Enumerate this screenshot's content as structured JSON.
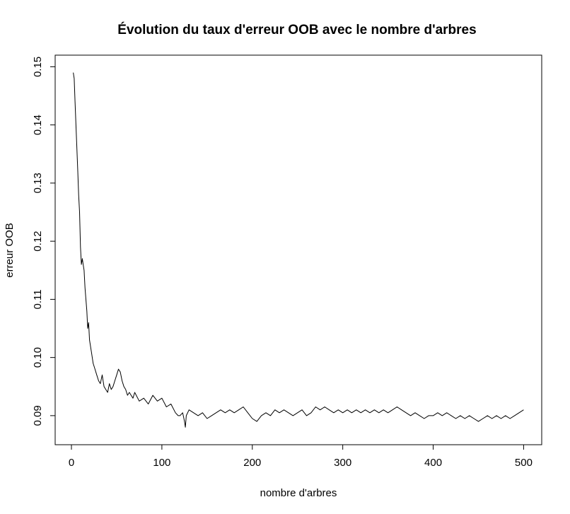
{
  "chart_data": {
    "type": "line",
    "title": "Évolution du taux d'erreur OOB avec le nombre d'arbres",
    "xlabel": "nombre d'arbres",
    "ylabel": "erreur OOB",
    "xlim": [
      -18,
      520
    ],
    "ylim": [
      0.085,
      0.152
    ],
    "xticks": [
      0,
      100,
      200,
      300,
      400,
      500
    ],
    "yticks": [
      0.09,
      0.1,
      0.11,
      0.12,
      0.13,
      0.14,
      0.15
    ],
    "xtick_labels": [
      "0",
      "100",
      "200",
      "300",
      "400",
      "500"
    ],
    "ytick_labels": [
      "0.09",
      "0.10",
      "0.11",
      "0.12",
      "0.13",
      "0.14",
      "0.15"
    ],
    "grid": false,
    "legend": "none",
    "series": [
      {
        "color": "#000000",
        "x": [
          2,
          3,
          4,
          5,
          6,
          7,
          8,
          9,
          10,
          11,
          12,
          13,
          14,
          15,
          16,
          17,
          18,
          19,
          20,
          22,
          24,
          26,
          28,
          30,
          32,
          34,
          36,
          38,
          40,
          42,
          44,
          46,
          48,
          50,
          52,
          54,
          56,
          58,
          60,
          62,
          64,
          66,
          68,
          70,
          75,
          80,
          85,
          90,
          95,
          100,
          105,
          110,
          115,
          118,
          120,
          123,
          125,
          126,
          127,
          130,
          135,
          140,
          145,
          150,
          155,
          160,
          165,
          170,
          175,
          180,
          185,
          190,
          195,
          200,
          205,
          210,
          215,
          220,
          225,
          230,
          235,
          240,
          245,
          250,
          255,
          260,
          265,
          270,
          275,
          280,
          285,
          290,
          295,
          300,
          305,
          310,
          315,
          320,
          325,
          330,
          335,
          340,
          345,
          350,
          355,
          360,
          365,
          370,
          375,
          380,
          385,
          390,
          395,
          400,
          405,
          410,
          415,
          420,
          425,
          430,
          435,
          440,
          445,
          450,
          455,
          460,
          465,
          470,
          475,
          480,
          485,
          490,
          495,
          500
        ],
        "y": [
          0.149,
          0.148,
          0.144,
          0.14,
          0.136,
          0.132,
          0.128,
          0.125,
          0.119,
          0.116,
          0.117,
          0.116,
          0.115,
          0.112,
          0.11,
          0.108,
          0.105,
          0.106,
          0.103,
          0.101,
          0.099,
          0.098,
          0.097,
          0.096,
          0.0955,
          0.097,
          0.095,
          0.0945,
          0.094,
          0.0955,
          0.0945,
          0.095,
          0.096,
          0.097,
          0.098,
          0.0975,
          0.096,
          0.095,
          0.0945,
          0.0935,
          0.094,
          0.0935,
          0.093,
          0.094,
          0.0925,
          0.093,
          0.092,
          0.0935,
          0.0925,
          0.093,
          0.0915,
          0.092,
          0.0905,
          0.09,
          0.09,
          0.0905,
          0.089,
          0.088,
          0.09,
          0.091,
          0.0905,
          0.09,
          0.0905,
          0.0895,
          0.09,
          0.0905,
          0.091,
          0.0905,
          0.091,
          0.0905,
          0.091,
          0.0915,
          0.0905,
          0.0895,
          0.089,
          0.09,
          0.0905,
          0.09,
          0.091,
          0.0905,
          0.091,
          0.0905,
          0.09,
          0.0905,
          0.091,
          0.09,
          0.0905,
          0.0915,
          0.091,
          0.0915,
          0.091,
          0.0905,
          0.091,
          0.0905,
          0.091,
          0.0905,
          0.091,
          0.0905,
          0.091,
          0.0905,
          0.091,
          0.0905,
          0.091,
          0.0905,
          0.091,
          0.0915,
          0.091,
          0.0905,
          0.09,
          0.0905,
          0.09,
          0.0895,
          0.09,
          0.09,
          0.0905,
          0.09,
          0.0905,
          0.09,
          0.0895,
          0.09,
          0.0895,
          0.09,
          0.0895,
          0.089,
          0.0895,
          0.09,
          0.0895,
          0.09,
          0.0895,
          0.09,
          0.0895,
          0.09,
          0.0905,
          0.091
        ]
      }
    ]
  }
}
